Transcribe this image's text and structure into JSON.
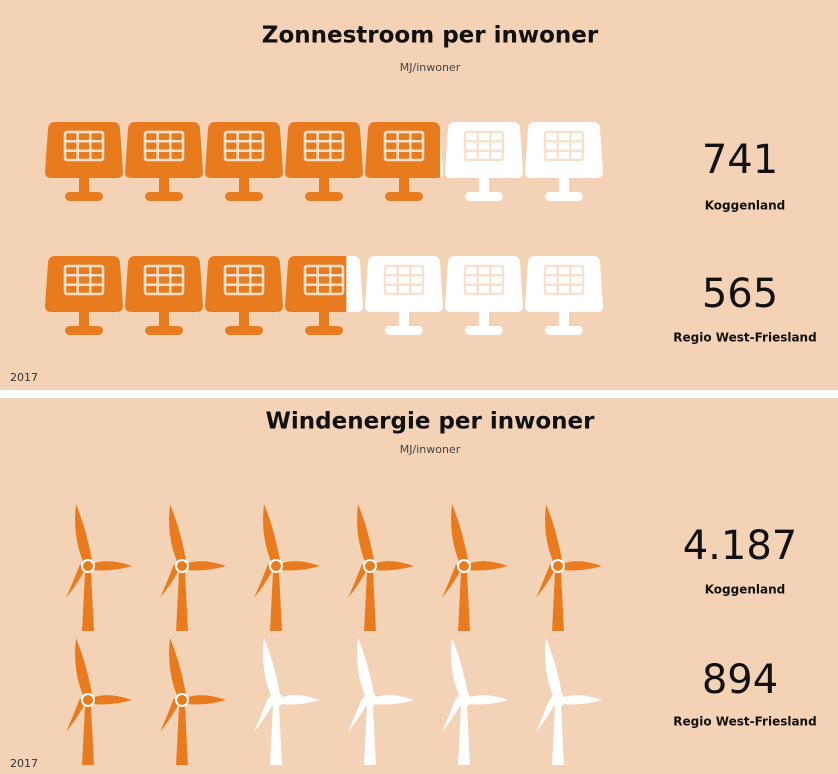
{
  "chart_data": [
    {
      "type": "pictogram",
      "icon": "solar",
      "title": "Zonnestroom per inwoner",
      "subtitle": "MJ/inwoner",
      "categories": [
        "Koggenland",
        "Regio West-Friesland"
      ],
      "values": [
        741,
        565
      ],
      "value_labels": [
        "741",
        "565"
      ],
      "xlim": [
        0,
        1050
      ],
      "color": "#e87b1e",
      "empty_color": "#ffffff",
      "footnote": "2017"
    },
    {
      "type": "pictogram",
      "icon": "wind",
      "title": "Windenergie per inwoner",
      "subtitle": "MJ/inwoner",
      "categories": [
        "Koggenland",
        "Regio West-Friesland"
      ],
      "values": [
        4187,
        894
      ],
      "value_labels": [
        "4.187",
        "894"
      ],
      "xlim": [
        0,
        2600
      ],
      "color": "#e87b1e",
      "empty_color": "#ffffff",
      "footnote": "2017"
    }
  ]
}
